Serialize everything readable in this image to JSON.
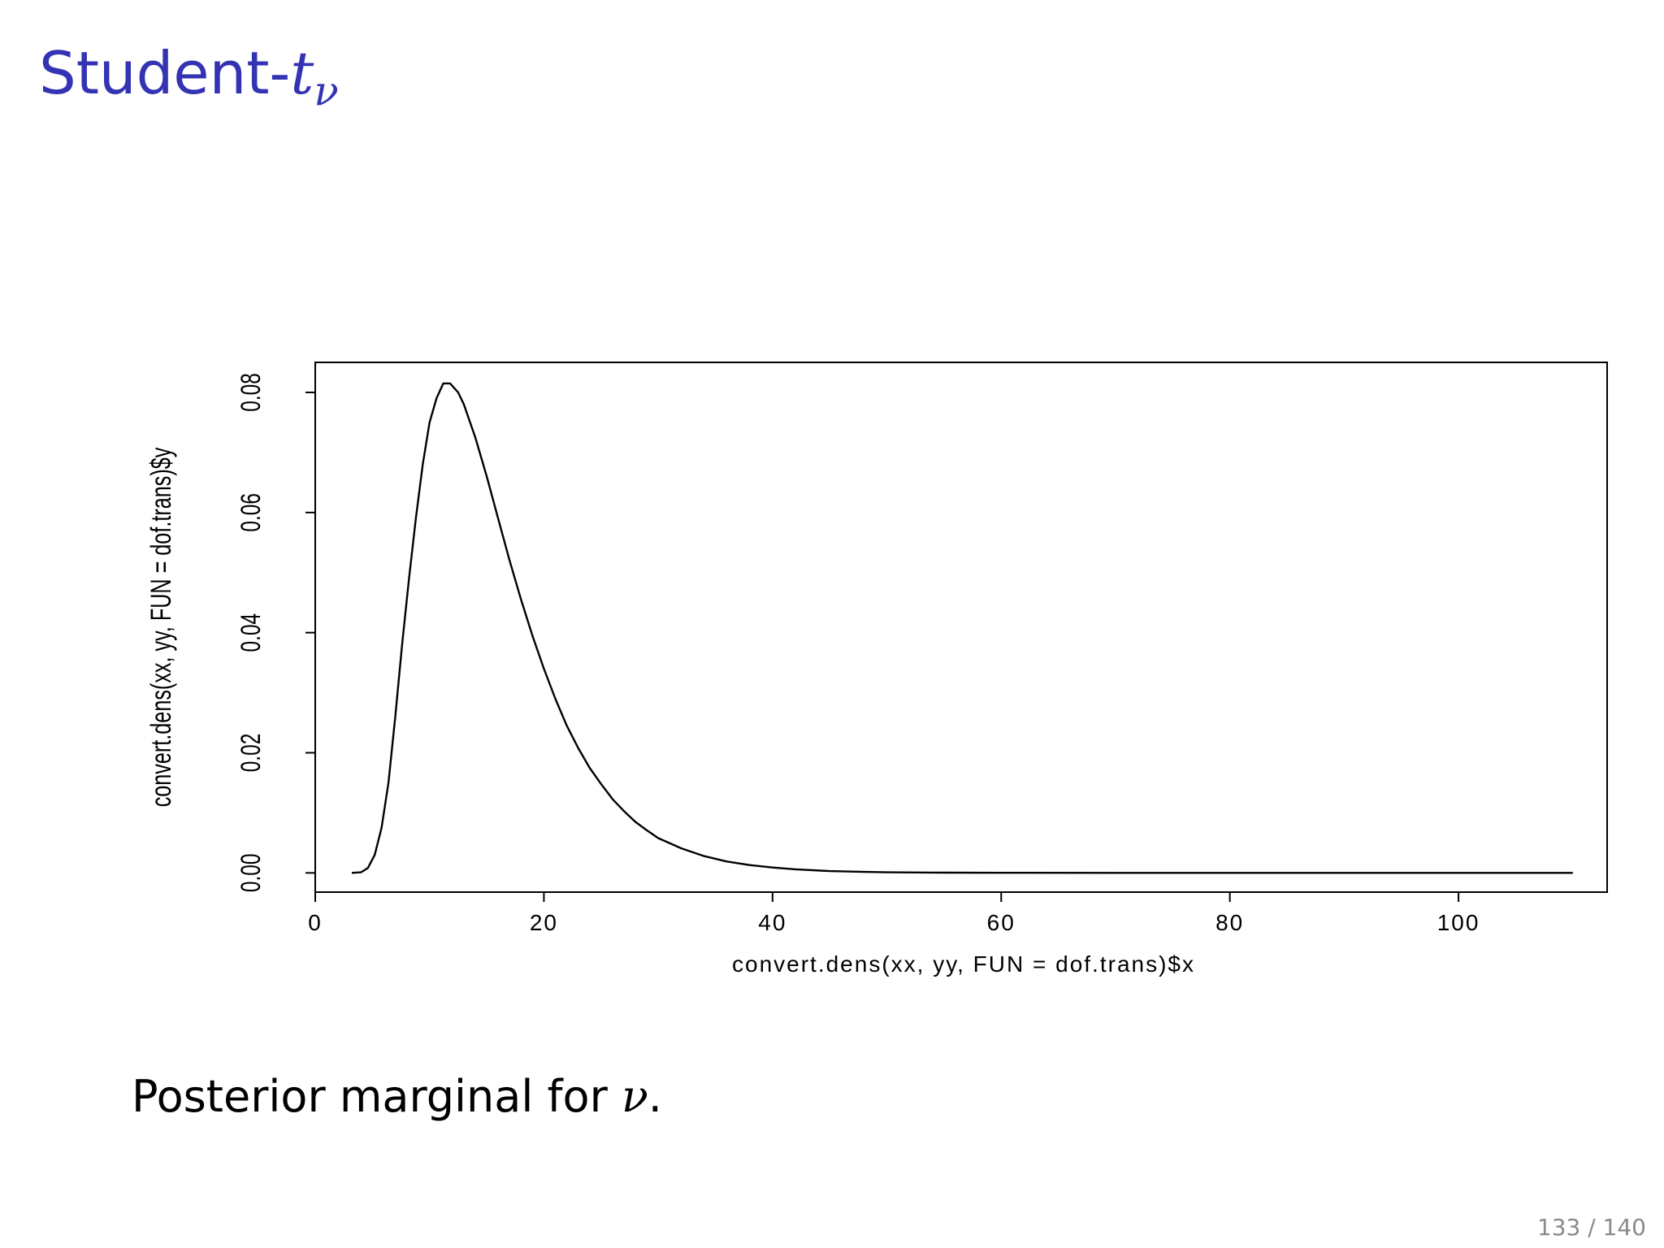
{
  "slide": {
    "title_text": "Student-",
    "title_var": "t",
    "title_sub": "ν",
    "caption_text": "Posterior marginal for ",
    "caption_var": "ν",
    "caption_end": ".",
    "page_number": "133 / 140"
  },
  "colors": {
    "title": "#3333b3",
    "curve": "#000000",
    "page_number": "#8a8a8a"
  },
  "chart_data": {
    "type": "line",
    "title": "",
    "xlabel": "convert.dens(xx, yy, FUN = dof.trans)$x",
    "ylabel": "convert.dens(xx, yy, FUN = dof.trans)$y",
    "xlim": [
      0,
      113
    ],
    "ylim": [
      -0.0032,
      0.085
    ],
    "x_ticks": [
      0,
      20,
      40,
      60,
      80,
      100
    ],
    "x_tick_labels": [
      "0",
      "20",
      "40",
      "60",
      "80",
      "100"
    ],
    "y_ticks": [
      0.0,
      0.02,
      0.04,
      0.06,
      0.08
    ],
    "y_tick_labels": [
      "0.00",
      "0.02",
      "0.04",
      "0.06",
      "0.08"
    ],
    "grid": false,
    "series": [
      {
        "x": [
          3.2,
          4.0,
          4.6,
          5.2,
          5.8,
          6.4,
          7.0,
          7.6,
          8.2,
          8.8,
          9.4,
          10.0,
          10.6,
          11.2,
          11.8,
          12.5,
          13.0,
          14.0,
          15.0,
          16.0,
          17.0,
          18.0,
          19.0,
          20.0,
          21.0,
          22.0,
          23.0,
          24.0,
          25.0,
          26.0,
          27.0,
          28.0,
          29.0,
          30.0,
          32.0,
          34.0,
          36.0,
          38.0,
          40.0,
          42.0,
          45.0,
          48.0,
          50.0,
          55.0,
          60.0,
          70.0,
          80.0,
          90.0,
          100.0,
          110.0
        ],
        "y": [
          0.0,
          0.0001,
          0.0008,
          0.003,
          0.0075,
          0.015,
          0.026,
          0.038,
          0.049,
          0.059,
          0.068,
          0.075,
          0.079,
          0.0815,
          0.0815,
          0.08,
          0.078,
          0.0725,
          0.066,
          0.059,
          0.052,
          0.0455,
          0.0395,
          0.034,
          0.029,
          0.0245,
          0.0208,
          0.0175,
          0.0148,
          0.0123,
          0.0103,
          0.0085,
          0.0071,
          0.0058,
          0.0041,
          0.0028,
          0.0019,
          0.0013,
          0.0009,
          0.0006,
          0.0003,
          0.00017,
          0.0001,
          4e-05,
          2e-05,
          0.0,
          0.0,
          0.0,
          0.0,
          0.0
        ]
      }
    ]
  }
}
